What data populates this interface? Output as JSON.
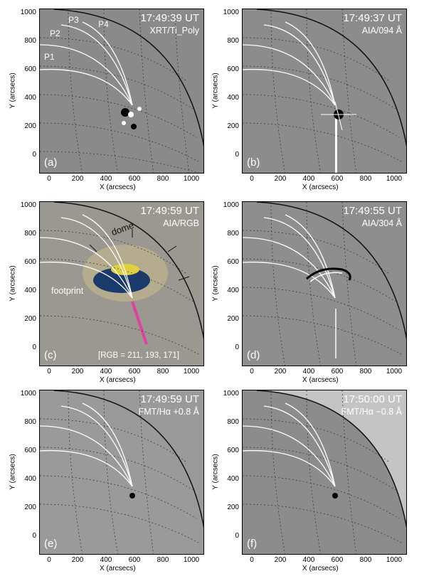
{
  "figure": {
    "panels": [
      {
        "id": "a",
        "label": "(a)",
        "time": "17:49:39 UT",
        "instrument": "XRT/Ti_Poly",
        "bg": "#8a8a8a"
      },
      {
        "id": "b",
        "label": "(b)",
        "time": "17:49:37 UT",
        "instrument": "AIA/094 Å",
        "bg": "#8c8c8c"
      },
      {
        "id": "c",
        "label": "(c)",
        "time": "17:49:59 UT",
        "instrument": "AIA/RGB",
        "bg": "#9a9890"
      },
      {
        "id": "d",
        "label": "(d)",
        "time": "17:49:55 UT",
        "instrument": "AIA/304 Å",
        "bg": "#8e8e8e"
      },
      {
        "id": "e",
        "label": "(e)",
        "time": "17:49:59 UT",
        "instrument": "FMT/Hα +0.8 Å",
        "bg": "#9a9a9a"
      },
      {
        "id": "f",
        "label": "(f)",
        "time": "17:50:00 UT",
        "instrument": "FMT/Hα −0.8 Å",
        "bg": "#c4c4c4"
      }
    ],
    "path_labels": [
      "P1",
      "P2",
      "P3",
      "P4"
    ],
    "annotations": {
      "dome": "dome",
      "footprint": "footprint",
      "rgb": "[RGB = 211, 193, 171]"
    },
    "y_ticks": [
      "0",
      "200",
      "400",
      "600",
      "800",
      "1000"
    ],
    "x_ticks": [
      "0",
      "200",
      "400",
      "600",
      "800",
      "1000"
    ],
    "ylabel": "Y (arcsecs)",
    "xlabel": "X (arcsecs)"
  }
}
